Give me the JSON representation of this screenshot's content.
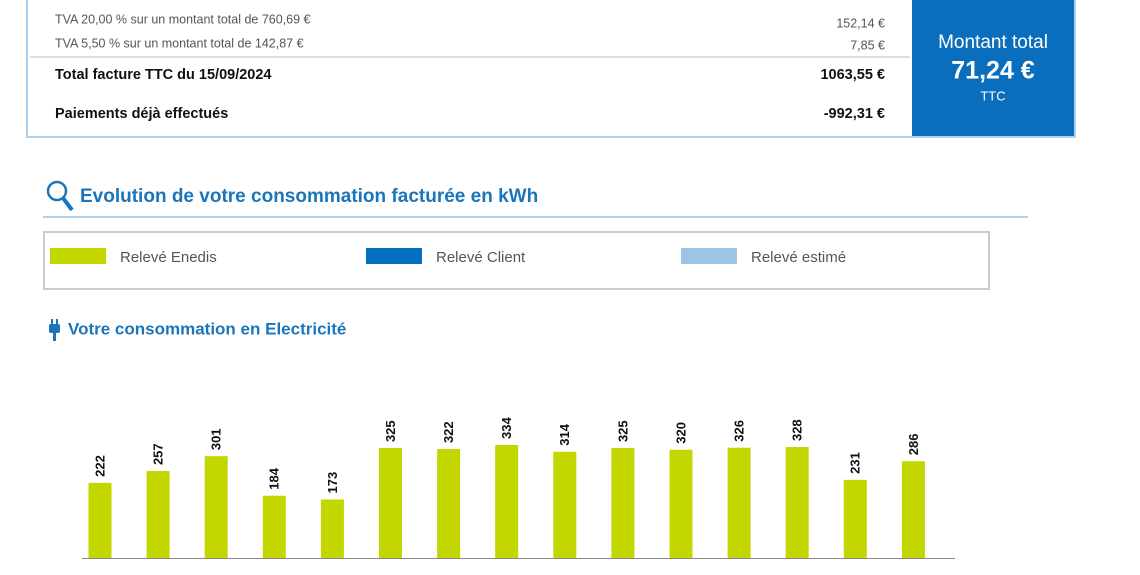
{
  "invoice": {
    "lines": [
      {
        "label": "TVA 20,00 % sur un montant total de 760,69 €",
        "amount": "152,14 €"
      },
      {
        "label": "TVA 5,50 % sur un montant total de 142,87 €",
        "amount": "7,85 €"
      }
    ],
    "total_label": "Total facture TTC du 15/09/2024",
    "total_amount": "1063,55 €",
    "paid_label": "Paiements déjà effectués",
    "paid_amount": "-992,31 €",
    "box": {
      "title": "Montant total",
      "amount": "71,24 €",
      "suffix": "TTC"
    }
  },
  "section_title": "Evolution de votre consommation facturée en kWh",
  "legend": [
    {
      "label": "Relevé Enedis",
      "color": "#c4d600"
    },
    {
      "label": "Relevé Client",
      "color": "#0070c0"
    },
    {
      "label": "Relevé estimé",
      "color": "#9dc3e6"
    }
  ],
  "chart_data": {
    "type": "bar",
    "title": "Votre consommation en Electricité",
    "color": "#c4d600",
    "values": [
      222,
      257,
      301,
      184,
      173,
      325,
      322,
      334,
      314,
      325,
      320,
      326,
      328,
      231,
      286
    ]
  }
}
